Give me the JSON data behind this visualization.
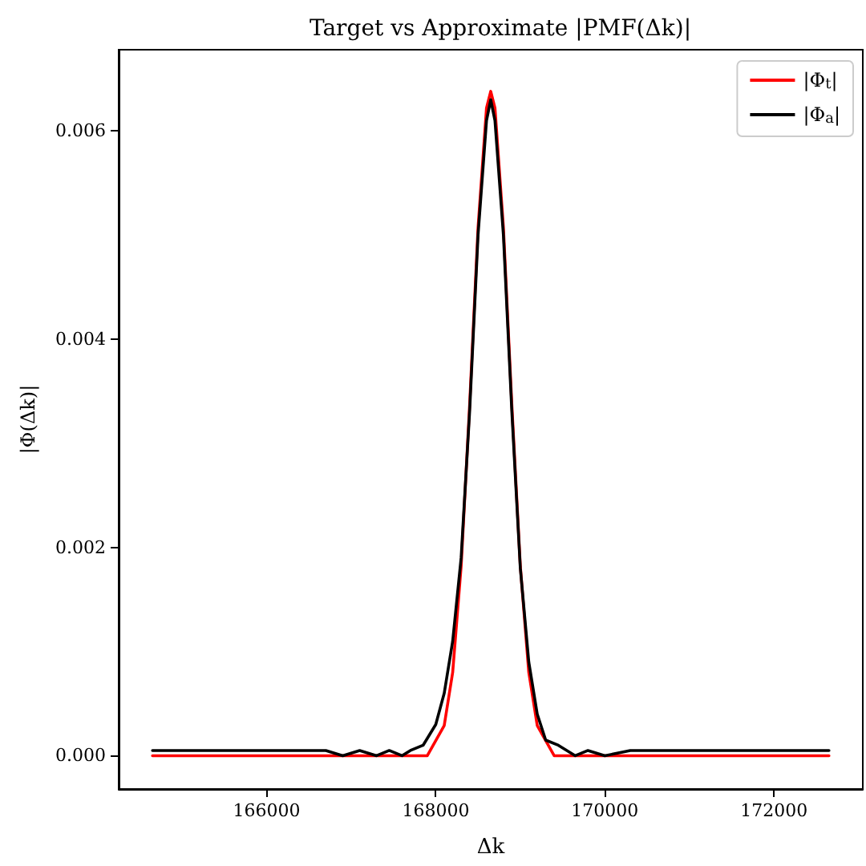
{
  "chart_data": {
    "type": "line",
    "title": "Target vs Approximate |PMF(Δk)|",
    "xlabel": "Δk",
    "ylabel": "|Φ(Δk)|",
    "xlim": [
      164250,
      173050
    ],
    "xticks": [
      166000,
      168000,
      170000,
      172000
    ],
    "ylim": [
      -0.00032,
      0.00678
    ],
    "yticks": [
      {
        "value": 0,
        "label": "0.000"
      },
      {
        "value": 0.002,
        "label": "0.002"
      },
      {
        "value": 0.004,
        "label": "0.004"
      },
      {
        "value": 0.006,
        "label": "0.006"
      }
    ],
    "grid": false,
    "legend": "top right",
    "marker": "none",
    "line_style": "solid",
    "series": [
      {
        "name": "|Φ$_{t}$|",
        "color": "#ff0000",
        "x": [
          164650,
          167700,
          167900,
          168100,
          168200,
          168300,
          168400,
          168500,
          168600,
          168650,
          168700,
          168800,
          168900,
          169000,
          169100,
          169200,
          169400,
          169600,
          172650
        ],
        "values": [
          0,
          0,
          0,
          0.00029,
          0.0008,
          0.00182,
          0.00336,
          0.00507,
          0.00622,
          0.00638,
          0.00622,
          0.00507,
          0.00336,
          0.00182,
          0.0008,
          0.00029,
          0,
          0,
          0
        ]
      },
      {
        "name": "|Φ$_{a}$|",
        "color": "#000000",
        "x": [
          164650,
          164900,
          165200,
          165500,
          165800,
          166100,
          166400,
          166700,
          166900,
          167100,
          167300,
          167450,
          167600,
          167700,
          167850,
          168000,
          168100,
          168200,
          168300,
          168400,
          168500,
          168600,
          168650,
          168700,
          168800,
          168900,
          169000,
          169100,
          169200,
          169300,
          169450,
          169650,
          169800,
          170000,
          170300,
          170600,
          170900,
          171200,
          171500,
          171800,
          172100,
          172400,
          172650
        ],
        "values": [
          5e-05,
          5e-05,
          5e-05,
          5e-05,
          5e-05,
          5e-05,
          5e-05,
          5e-05,
          0,
          5e-05,
          0,
          5e-05,
          0,
          5e-05,
          0.0001,
          0.0003,
          0.0006,
          0.0011,
          0.0019,
          0.0033,
          0.005,
          0.0061,
          0.0063,
          0.0061,
          0.005,
          0.0033,
          0.0018,
          0.0009,
          0.0004,
          0.00015,
          0.0001,
          0,
          5e-05,
          0,
          5e-05,
          5e-05,
          5e-05,
          5e-05,
          5e-05,
          5e-05,
          5e-05,
          5e-05,
          5e-05
        ]
      }
    ]
  }
}
